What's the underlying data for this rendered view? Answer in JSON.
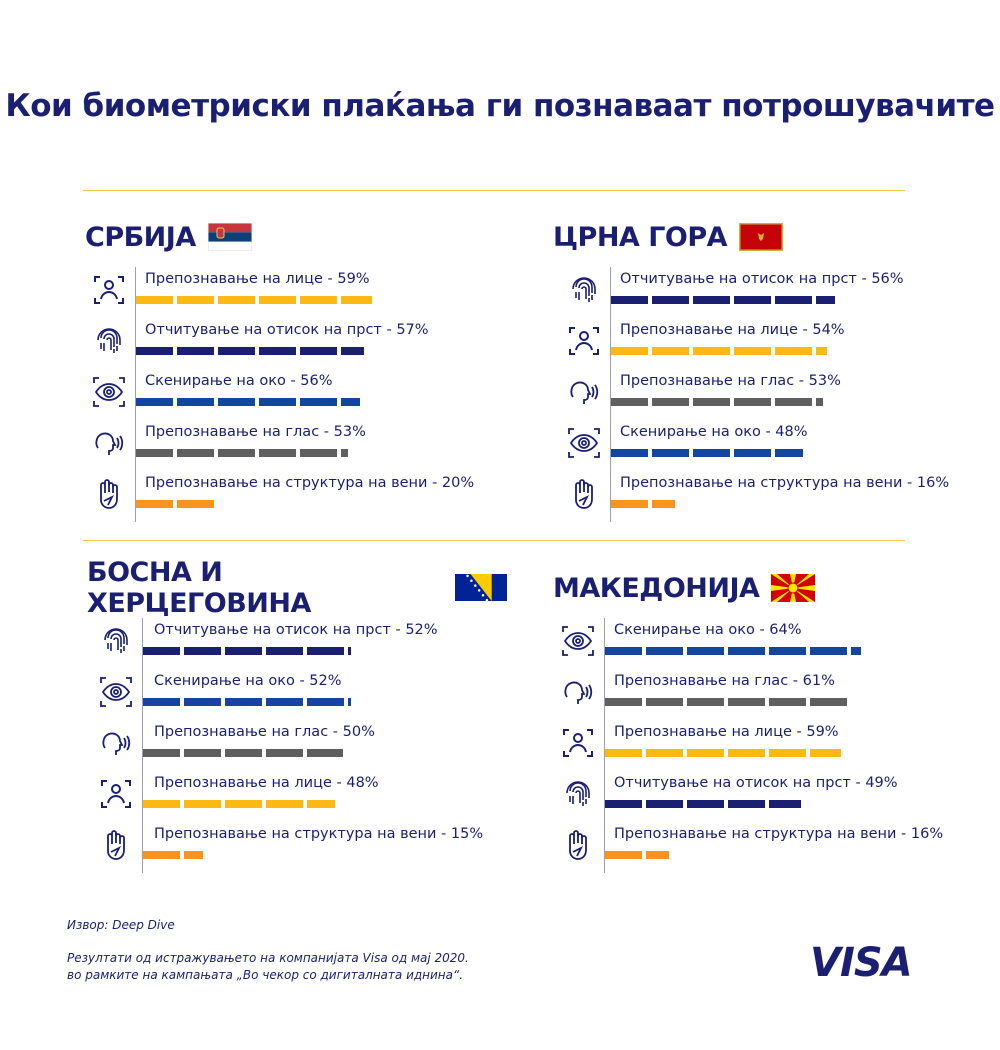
{
  "title": "Кои биометриски плаќања ги познаваат потрошувачите",
  "colors": {
    "face": "#fdb913",
    "fingerprint": "#1a1f71",
    "eye": "#1446a0",
    "voice": "#5f5f5f",
    "vein": "#f7931e"
  },
  "chart_data": [
    {
      "type": "bar",
      "title": "СРБИЈА",
      "flag": "serbia",
      "unit": "%",
      "items": [
        {
          "label": "Препознавање на лице",
          "value": 59,
          "icon": "face-scan-icon",
          "kind": "face"
        },
        {
          "label": "Отчитување на отисок на прст",
          "value": 57,
          "icon": "fingerprint-icon",
          "kind": "fingerprint"
        },
        {
          "label": "Скенирање на око",
          "value": 56,
          "icon": "eye-scan-icon",
          "kind": "eye"
        },
        {
          "label": "Препознавање на глас",
          "value": 53,
          "icon": "voice-icon",
          "kind": "voice"
        },
        {
          "label": "Препознавање на структура на вени",
          "value": 20,
          "icon": "hand-icon",
          "kind": "vein"
        }
      ]
    },
    {
      "type": "bar",
      "title": "ЦРНА ГОРА",
      "flag": "montenegro",
      "unit": "%",
      "items": [
        {
          "label": "Отчитување на отисок на прст",
          "value": 56,
          "icon": "fingerprint-icon",
          "kind": "fingerprint"
        },
        {
          "label": "Препознавање на лице",
          "value": 54,
          "icon": "face-scan-icon",
          "kind": "face"
        },
        {
          "label": "Препознавање на глас",
          "value": 53,
          "icon": "voice-icon",
          "kind": "voice"
        },
        {
          "label": "Скенирање на око",
          "value": 48,
          "icon": "eye-scan-icon",
          "kind": "eye"
        },
        {
          "label": "Препознавање на структура на вени",
          "value": 16,
          "icon": "hand-icon",
          "kind": "vein"
        }
      ]
    },
    {
      "type": "bar",
      "title": "БОСНА И ХЕРЦЕГОВИНА",
      "flag": "bosnia",
      "unit": "%",
      "items": [
        {
          "label": "Отчитување на отисок на прст",
          "value": 52,
          "icon": "fingerprint-icon",
          "kind": "fingerprint"
        },
        {
          "label": "Скенирање на око",
          "value": 52,
          "icon": "eye-scan-icon",
          "kind": "eye"
        },
        {
          "label": "Препознавање на глас",
          "value": 50,
          "icon": "voice-icon",
          "kind": "voice"
        },
        {
          "label": "Препознавање на лице",
          "value": 48,
          "icon": "face-scan-icon",
          "kind": "face"
        },
        {
          "label": "Препознавање на структура на вени",
          "value": 15,
          "icon": "hand-icon",
          "kind": "vein"
        }
      ]
    },
    {
      "type": "bar",
      "title": "МАКЕДОНИЈА",
      "flag": "macedonia",
      "unit": "%",
      "items": [
        {
          "label": "Скенирање на око",
          "value": 64,
          "icon": "eye-scan-icon",
          "kind": "eye"
        },
        {
          "label": "Препознавање на глас",
          "value": 61,
          "icon": "voice-icon",
          "kind": "voice"
        },
        {
          "label": "Препознавање на лице",
          "value": 59,
          "icon": "face-scan-icon",
          "kind": "face"
        },
        {
          "label": "Отчитување на отисок на прст",
          "value": 49,
          "icon": "fingerprint-icon",
          "kind": "fingerprint"
        },
        {
          "label": "Препознавање на структура на вени",
          "value": 16,
          "icon": "hand-icon",
          "kind": "vein"
        }
      ]
    }
  ],
  "footer": {
    "source": "Извор: Deep Dive",
    "note_line1": "Резултати од истражувањето на компанијата Visa од мај 2020.",
    "note_line2": "во рамките на кампањата „Во чекор со дигиталната иднина“."
  },
  "logo": "VISA"
}
